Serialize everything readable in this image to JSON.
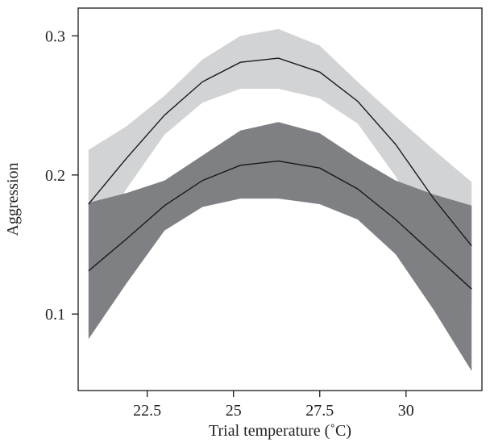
{
  "chart_data": {
    "type": "area",
    "title": "",
    "xlabel": "Trial temperature (˚C)",
    "ylabel": "Aggression",
    "xlim": [
      20.5,
      32.2
    ],
    "ylim": [
      0.045,
      0.32
    ],
    "xticks": [
      22.5,
      25,
      27.5,
      30
    ],
    "xtick_labels": [
      "22.5",
      "25",
      "27.5",
      "30"
    ],
    "yticks": [
      0.1,
      0.2,
      0.3
    ],
    "ytick_labels": [
      "0.1",
      "0.2",
      "0.3"
    ],
    "grid": false,
    "x": [
      20.8,
      21.9,
      23.0,
      24.1,
      25.2,
      26.3,
      27.5,
      28.6,
      29.7,
      30.8,
      31.9
    ],
    "series": [
      {
        "color": "#1a1a1a",
        "band_color": "#d2d3d5",
        "values": [
          0.179,
          0.212,
          0.243,
          0.267,
          0.281,
          0.284,
          0.274,
          0.253,
          0.222,
          0.183,
          0.149
        ],
        "lower": [
          0.143,
          0.19,
          0.229,
          0.252,
          0.262,
          0.262,
          0.255,
          0.237,
          0.199,
          0.148,
          0.106
        ],
        "upper": [
          0.218,
          0.235,
          0.257,
          0.283,
          0.3,
          0.305,
          0.293,
          0.267,
          0.242,
          0.218,
          0.195
        ]
      },
      {
        "color": "#1a1a1a",
        "band_color": "#7e8083",
        "values": [
          0.131,
          0.154,
          0.178,
          0.196,
          0.207,
          0.21,
          0.205,
          0.19,
          0.168,
          0.143,
          0.118
        ],
        "lower": [
          0.082,
          0.122,
          0.16,
          0.177,
          0.183,
          0.183,
          0.179,
          0.168,
          0.143,
          0.103,
          0.059
        ],
        "upper": [
          0.18,
          0.187,
          0.196,
          0.214,
          0.232,
          0.238,
          0.23,
          0.212,
          0.196,
          0.186,
          0.178
        ]
      }
    ]
  }
}
